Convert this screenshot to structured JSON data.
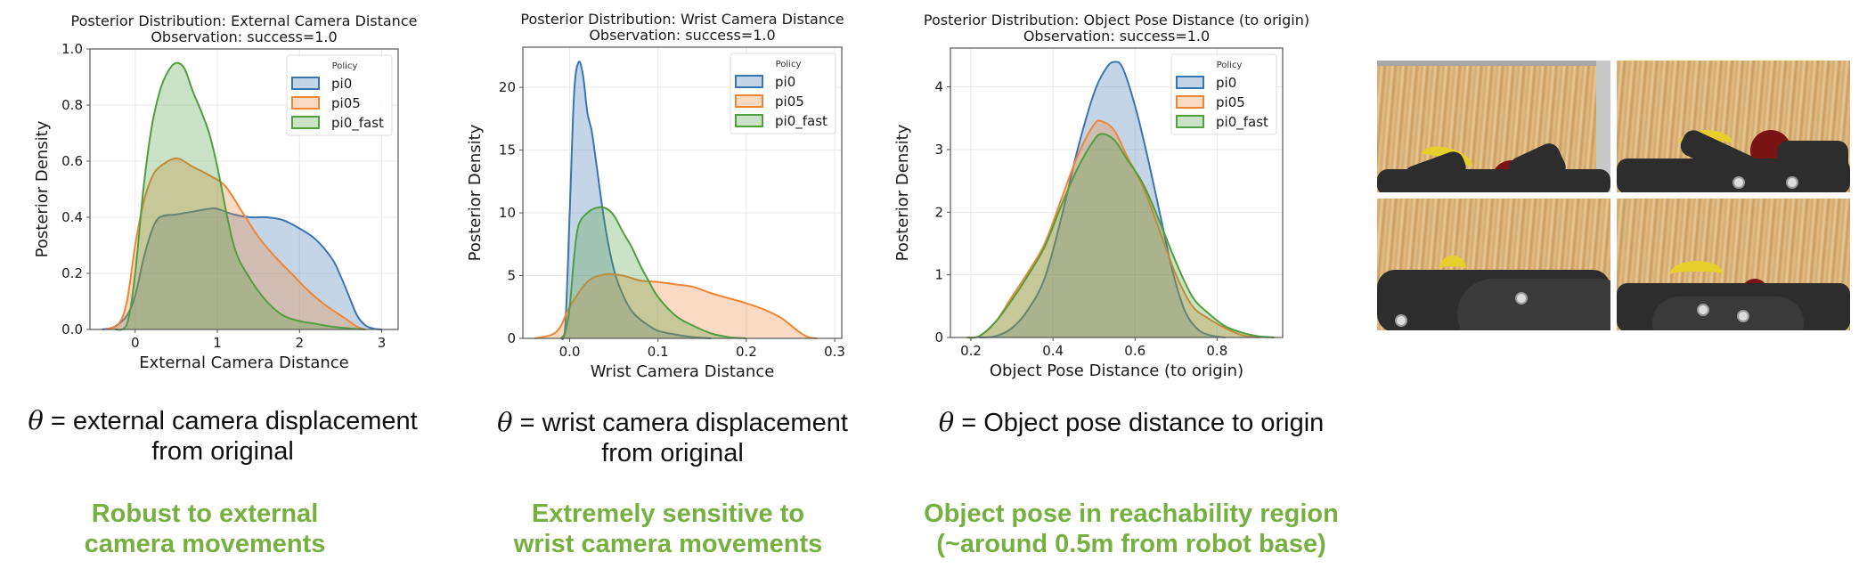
{
  "colors": {
    "pi0": "#3b75af",
    "pi05": "#ef8636",
    "pi0_fast": "#519e3e",
    "takeaway": "#76b041"
  },
  "legend": {
    "title": "Policy",
    "entries": [
      "pi0",
      "pi05",
      "pi0_fast"
    ]
  },
  "chart_data": [
    {
      "type": "area",
      "title": "Posterior Distribution: External Camera Distance",
      "subtitle": "Observation: success=1.0",
      "xlabel": "External Camera Distance",
      "ylabel": "Posterior Density",
      "xlim": [
        -0.55,
        3.2
      ],
      "ylim": [
        0,
        1.0
      ],
      "xticks": [
        0,
        1,
        2,
        3
      ],
      "xtick_labels": [
        "0",
        "1",
        "2",
        "3"
      ],
      "yticks": [
        0,
        0.2,
        0.4,
        0.6,
        0.8,
        1.0
      ],
      "ytick_labels": [
        "0.0",
        "0.2",
        "0.4",
        "0.6",
        "0.8",
        "1.0"
      ],
      "grid": true,
      "legend_position": "upper right",
      "series": [
        {
          "name": "pi0",
          "x": [
            -0.4,
            -0.25,
            -0.1,
            0.0,
            0.1,
            0.2,
            0.3,
            0.5,
            0.7,
            0.9,
            1.0,
            1.2,
            1.4,
            1.6,
            1.8,
            2.0,
            2.2,
            2.4,
            2.5,
            2.6,
            2.7,
            2.8,
            2.9,
            3.0
          ],
          "y": [
            0.0,
            0.01,
            0.05,
            0.12,
            0.25,
            0.35,
            0.4,
            0.41,
            0.42,
            0.43,
            0.43,
            0.41,
            0.4,
            0.4,
            0.39,
            0.36,
            0.32,
            0.25,
            0.19,
            0.12,
            0.05,
            0.015,
            0.003,
            0.0
          ]
        },
        {
          "name": "pi05",
          "x": [
            -0.35,
            -0.2,
            -0.1,
            0.0,
            0.1,
            0.2,
            0.3,
            0.5,
            0.7,
            0.9,
            1.1,
            1.3,
            1.5,
            1.7,
            1.9,
            2.1,
            2.3,
            2.5,
            2.6,
            2.7,
            2.8
          ],
          "y": [
            0.0,
            0.02,
            0.1,
            0.3,
            0.45,
            0.54,
            0.58,
            0.61,
            0.58,
            0.55,
            0.51,
            0.42,
            0.33,
            0.26,
            0.2,
            0.14,
            0.09,
            0.05,
            0.03,
            0.01,
            0.0
          ]
        },
        {
          "name": "pi0_fast",
          "x": [
            -0.25,
            -0.1,
            0.0,
            0.1,
            0.2,
            0.3,
            0.4,
            0.5,
            0.6,
            0.7,
            0.8,
            0.9,
            1.0,
            1.2,
            1.4,
            1.6,
            1.8,
            2.0,
            2.2,
            2.4,
            2.6,
            2.8
          ],
          "y": [
            0.0,
            0.02,
            0.2,
            0.5,
            0.72,
            0.85,
            0.92,
            0.95,
            0.93,
            0.85,
            0.78,
            0.7,
            0.58,
            0.3,
            0.18,
            0.1,
            0.05,
            0.03,
            0.02,
            0.01,
            0.004,
            0.0
          ]
        }
      ]
    },
    {
      "type": "area",
      "title": "Posterior Distribution: Wrist Camera Distance",
      "subtitle": "Observation: success=1.0",
      "xlabel": "Wrist Camera Distance",
      "ylabel": "Posterior Density",
      "xlim": [
        -0.053,
        0.308
      ],
      "ylim": [
        0,
        23.2
      ],
      "xticks": [
        0.0,
        0.1,
        0.2,
        0.3
      ],
      "xtick_labels": [
        "0.0",
        "0.1",
        "0.2",
        "0.3"
      ],
      "yticks": [
        0,
        5,
        10,
        15,
        20
      ],
      "ytick_labels": [
        "0",
        "5",
        "10",
        "15",
        "20"
      ],
      "grid": true,
      "legend_position": "upper right",
      "series": [
        {
          "name": "pi0",
          "x": [
            -0.01,
            -0.005,
            0.0,
            0.005,
            0.01,
            0.015,
            0.02,
            0.025,
            0.03,
            0.04,
            0.05,
            0.06,
            0.07,
            0.08,
            0.09,
            0.1,
            0.12,
            0.14,
            0.16
          ],
          "y": [
            0.0,
            1.0,
            10.0,
            19.5,
            22.0,
            21.0,
            18.0,
            16.5,
            14.0,
            9.0,
            5.5,
            3.5,
            2.2,
            1.5,
            1.0,
            0.6,
            0.3,
            0.1,
            0.0
          ]
        },
        {
          "name": "pi05",
          "x": [
            -0.04,
            -0.02,
            -0.01,
            0.0,
            0.02,
            0.04,
            0.06,
            0.08,
            0.1,
            0.12,
            0.14,
            0.16,
            0.18,
            0.2,
            0.22,
            0.24,
            0.26,
            0.27,
            0.28
          ],
          "y": [
            0.0,
            0.3,
            1.0,
            2.5,
            4.5,
            5.1,
            5.0,
            4.6,
            4.5,
            4.3,
            4.1,
            3.6,
            3.2,
            2.8,
            2.3,
            1.6,
            0.5,
            0.1,
            0.0
          ]
        },
        {
          "name": "pi0_fast",
          "x": [
            -0.01,
            -0.005,
            0.0,
            0.005,
            0.01,
            0.02,
            0.03,
            0.04,
            0.05,
            0.06,
            0.07,
            0.08,
            0.09,
            0.1,
            0.12,
            0.14,
            0.16,
            0.18,
            0.2
          ],
          "y": [
            0.0,
            0.5,
            2.5,
            6.5,
            9.0,
            10.0,
            10.4,
            10.4,
            9.8,
            8.5,
            7.3,
            5.8,
            4.5,
            3.3,
            1.8,
            1.0,
            0.4,
            0.1,
            0.0
          ]
        }
      ]
    },
    {
      "type": "area",
      "title": "Posterior Distribution: Object Pose Distance (to origin)",
      "subtitle": "Observation: success=1.0",
      "xlabel": "Object Pose Distance (to origin)",
      "ylabel": "Posterior Density",
      "xlim": [
        0.15,
        0.96
      ],
      "ylim": [
        0,
        4.62
      ],
      "xticks": [
        0.2,
        0.4,
        0.6,
        0.8
      ],
      "xtick_labels": [
        "0.2",
        "0.4",
        "0.6",
        "0.8"
      ],
      "yticks": [
        0,
        1,
        2,
        3,
        4
      ],
      "ytick_labels": [
        "0",
        "1",
        "2",
        "3",
        "4"
      ],
      "grid": true,
      "legend_position": "upper right",
      "series": [
        {
          "name": "pi0",
          "x": [
            0.22,
            0.26,
            0.3,
            0.34,
            0.38,
            0.42,
            0.46,
            0.5,
            0.53,
            0.55,
            0.57,
            0.6,
            0.63,
            0.66,
            0.69,
            0.72,
            0.75,
            0.78,
            0.82
          ],
          "y": [
            0.0,
            0.02,
            0.15,
            0.45,
            0.95,
            1.9,
            3.0,
            3.9,
            4.3,
            4.4,
            4.3,
            3.7,
            2.9,
            2.0,
            1.1,
            0.45,
            0.15,
            0.04,
            0.0
          ]
        },
        {
          "name": "pi05",
          "x": [
            0.19,
            0.22,
            0.26,
            0.3,
            0.34,
            0.38,
            0.42,
            0.46,
            0.5,
            0.52,
            0.55,
            0.58,
            0.62,
            0.66,
            0.7,
            0.74,
            0.78,
            0.82,
            0.86,
            0.9
          ],
          "y": [
            0.0,
            0.02,
            0.25,
            0.65,
            1.05,
            1.5,
            2.2,
            2.9,
            3.4,
            3.45,
            3.3,
            2.9,
            2.4,
            1.7,
            1.0,
            0.5,
            0.3,
            0.15,
            0.04,
            0.0
          ]
        },
        {
          "name": "pi0_fast",
          "x": [
            0.19,
            0.22,
            0.26,
            0.3,
            0.34,
            0.38,
            0.42,
            0.46,
            0.5,
            0.52,
            0.55,
            0.58,
            0.62,
            0.66,
            0.7,
            0.74,
            0.78,
            0.82,
            0.86,
            0.9,
            0.94
          ],
          "y": [
            0.0,
            0.02,
            0.25,
            0.6,
            1.0,
            1.45,
            2.1,
            2.7,
            3.15,
            3.25,
            3.15,
            2.85,
            2.45,
            1.85,
            1.2,
            0.65,
            0.38,
            0.18,
            0.08,
            0.02,
            0.0
          ]
        }
      ]
    }
  ],
  "captions": [
    {
      "theta": "θ",
      "text": " = external camera displacement",
      "line2": "from original"
    },
    {
      "theta": "θ",
      "text": " = wrist camera displacement",
      "line2": "from original"
    },
    {
      "theta": "θ",
      "text": " = Object pose distance to origin",
      "line2": ""
    }
  ],
  "takeaways": [
    {
      "line1": "Robust to external",
      "line2": "camera movements"
    },
    {
      "line1": "Extremely sensitive to",
      "line2": "wrist camera movements"
    },
    {
      "line1": "Object pose in reachability region",
      "line2": "(~around 0.5m from robot base)"
    }
  ],
  "images": {
    "alt": "Robot gripper views of banana and red bowl on wooden table",
    "count": 4
  }
}
